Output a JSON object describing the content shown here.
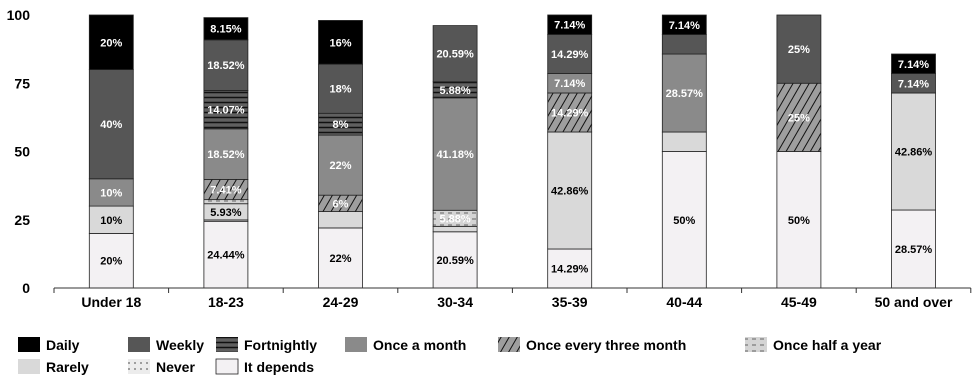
{
  "chart_data": {
    "type": "bar",
    "stacked": true,
    "categories": [
      "Under 18",
      "18-23",
      "24-29",
      "30-34",
      "35-39",
      "40-44",
      "45-49",
      "50  and over"
    ],
    "ylim": [
      0,
      100
    ],
    "yticks": [
      "0",
      "25",
      "50",
      "75",
      "100"
    ],
    "legend_position": "bottom",
    "series": [
      {
        "name": "It depends",
        "fill": "#f3f1f3",
        "pattern": "none",
        "values": [
          20,
          24.44,
          22,
          20.59,
          14.29,
          50,
          50,
          28.57
        ],
        "labels": [
          "20%",
          "24.44%",
          "22%",
          "20.59%",
          "14.29%",
          "50%",
          "50%",
          "28.57%"
        ],
        "label_color": "#000000"
      },
      {
        "name": "Never",
        "fill": "#ececec",
        "pattern": "dots",
        "values": [
          0,
          0.5,
          0,
          0,
          0,
          0,
          0,
          0
        ],
        "labels": [
          "",
          "",
          "",
          "",
          "",
          "",
          "",
          ""
        ],
        "label_color": "#000000"
      },
      {
        "name": "Rarely",
        "fill": "#d9d9d9",
        "pattern": "none",
        "values": [
          10,
          5.93,
          6,
          2,
          42.86,
          7.14,
          0,
          42.86
        ],
        "labels": [
          "10%",
          "5.93%",
          "",
          "",
          "42.86%",
          "",
          "",
          "42.86%"
        ],
        "label_color": "#000000"
      },
      {
        "name": "Once half a year",
        "fill": "#d4d4d4",
        "pattern": "dashes",
        "values": [
          0,
          1.5,
          0,
          5.88,
          0,
          0,
          0,
          0
        ],
        "labels": [
          "",
          "",
          "",
          "5.88%",
          "",
          "",
          "",
          ""
        ],
        "label_color": "#ffffff"
      },
      {
        "name": "Once every three month",
        "fill": "#9e9e9e",
        "pattern": "diagonal",
        "values": [
          0,
          7.41,
          6,
          0,
          14.29,
          0,
          25,
          0
        ],
        "labels": [
          "",
          "7.41%",
          "6%",
          "",
          "14.29%",
          "",
          "25%",
          ""
        ],
        "label_color": "#ffffff"
      },
      {
        "name": "Once a month",
        "fill": "#8a8a8a",
        "pattern": "none",
        "values": [
          10,
          18.52,
          22,
          41.18,
          7.14,
          28.57,
          0,
          0
        ],
        "labels": [
          "10%",
          "18.52%",
          "22%",
          "41.18%",
          "7.14%",
          "28.57%",
          "",
          ""
        ],
        "label_color": "#ffffff"
      },
      {
        "name": "Fortnightly",
        "fill": "#606060",
        "pattern": "hlines",
        "values": [
          0,
          14.07,
          8,
          5.88,
          0,
          0,
          0,
          0
        ],
        "labels": [
          "",
          "14.07%",
          "8%",
          "5.88%",
          "",
          "",
          "",
          ""
        ],
        "label_color": "#ffffff"
      },
      {
        "name": "Weekly",
        "fill": "#565656",
        "pattern": "none",
        "values": [
          40,
          18.52,
          18,
          20.59,
          14.29,
          7.14,
          25,
          7.14
        ],
        "labels": [
          "40%",
          "18.52%",
          "18%",
          "20.59%",
          "14.29%",
          "",
          "25%",
          "7.14%"
        ],
        "label_color": "#ffffff"
      },
      {
        "name": "Daily",
        "fill": "#000000",
        "pattern": "none",
        "values": [
          20,
          8.15,
          16,
          0,
          7.14,
          7.14,
          0,
          7.14
        ],
        "labels": [
          "20%",
          "8.15%",
          "16%",
          "",
          "7.14%",
          "7.14%",
          "",
          "7.14%"
        ],
        "label_color": "#ffffff"
      }
    ],
    "legend_order": [
      "Daily",
      "Weekly",
      "Fortnightly",
      "Once a month",
      "Once every three month",
      "Once half a year",
      "Rarely",
      "Never",
      "It depends"
    ]
  }
}
